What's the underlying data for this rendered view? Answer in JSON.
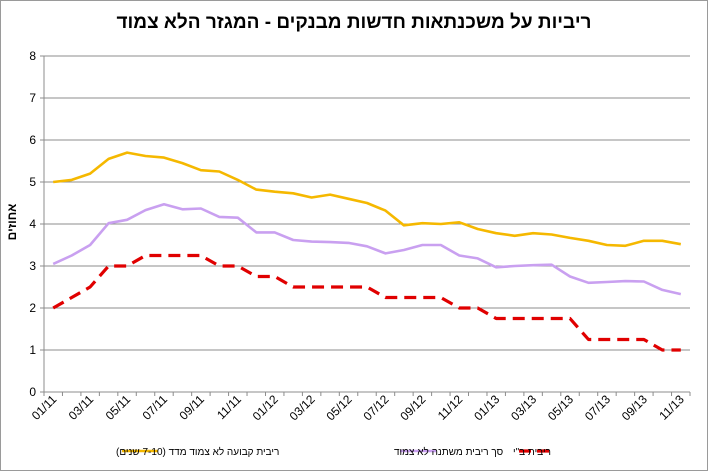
{
  "chart_data": {
    "type": "line",
    "title": "ריביות על משכנתאות חדשות מבנקים - המגזר הלא צמוד",
    "ylabel": "אחוזים",
    "xlabel": "",
    "ylim": [
      0,
      8
    ],
    "yticks": [
      0,
      1,
      2,
      3,
      4,
      5,
      6,
      7,
      8
    ],
    "grid": "horizontal",
    "legend_position": "bottom",
    "x": [
      "01/11",
      "02/11",
      "03/11",
      "04/11",
      "05/11",
      "06/11",
      "07/11",
      "08/11",
      "09/11",
      "10/11",
      "11/11",
      "12/11",
      "01/12",
      "02/12",
      "03/12",
      "04/12",
      "05/12",
      "06/12",
      "07/12",
      "08/12",
      "09/12",
      "10/12",
      "11/12",
      "12/12",
      "01/13",
      "02/13",
      "03/13",
      "04/13",
      "05/13",
      "06/13",
      "07/13",
      "08/13",
      "09/13",
      "10/13",
      "11/13"
    ],
    "xtick_labels": [
      "01/11",
      "03/11",
      "05/11",
      "07/11",
      "09/11",
      "11/11",
      "01/12",
      "03/12",
      "05/12",
      "07/12",
      "09/12",
      "11/12",
      "01/13",
      "03/13",
      "05/13",
      "07/13",
      "09/13",
      "11/13"
    ],
    "series": [
      {
        "name": "ריבית קבועה לא צמוד מדד (7-10 שנים)",
        "color": "#f5b800",
        "dash": "solid",
        "values": [
          5.0,
          5.05,
          5.2,
          5.55,
          5.7,
          5.62,
          5.58,
          5.45,
          5.28,
          5.25,
          5.05,
          4.82,
          4.77,
          4.73,
          4.63,
          4.7,
          4.6,
          4.5,
          4.32,
          3.97,
          4.02,
          4.0,
          4.04,
          3.88,
          3.78,
          3.72,
          3.78,
          3.75,
          3.67,
          3.6,
          3.5,
          3.48,
          3.6,
          3.6,
          3.52
        ]
      },
      {
        "name": "סך ריבית משתנה לא צמוד",
        "color": "#c9a0f0",
        "dash": "solid",
        "values": [
          3.05,
          3.25,
          3.5,
          4.02,
          4.1,
          4.33,
          4.47,
          4.35,
          4.37,
          4.17,
          4.15,
          3.8,
          3.8,
          3.62,
          3.58,
          3.57,
          3.55,
          3.47,
          3.3,
          3.38,
          3.5,
          3.5,
          3.25,
          3.18,
          2.97,
          3.0,
          3.02,
          3.03,
          2.75,
          2.6,
          2.62,
          2.64,
          2.63,
          2.43,
          2.33
        ]
      },
      {
        "name": "ריבית ב\"י",
        "color": "#e00000",
        "dash": "dashed",
        "values": [
          2.0,
          2.25,
          2.5,
          3.0,
          3.0,
          3.25,
          3.25,
          3.25,
          3.25,
          3.0,
          3.0,
          2.75,
          2.75,
          2.5,
          2.5,
          2.5,
          2.5,
          2.5,
          2.25,
          2.25,
          2.25,
          2.25,
          2.0,
          2.0,
          1.75,
          1.75,
          1.75,
          1.75,
          1.75,
          1.25,
          1.25,
          1.25,
          1.25,
          1.0,
          1.0
        ]
      }
    ]
  }
}
